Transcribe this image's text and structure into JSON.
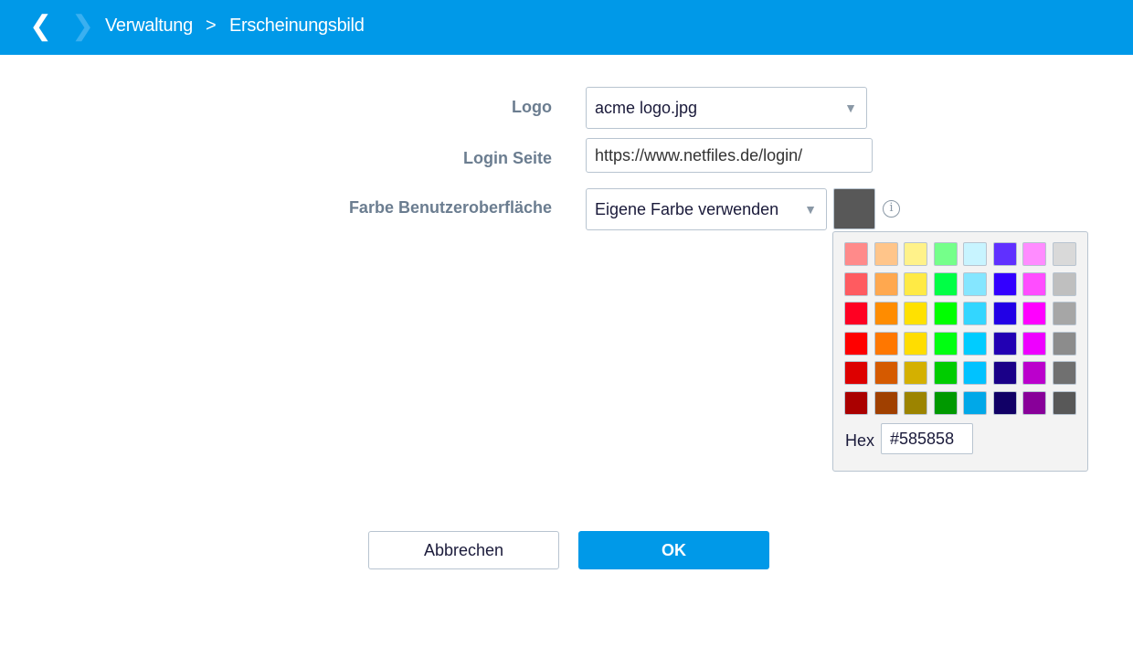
{
  "header": {
    "back_icon": "chevron-left",
    "forward_icon": "chevron-right",
    "breadcrumb": [
      "Verwaltung",
      "Erscheinungsbild"
    ],
    "separator": ">"
  },
  "form": {
    "logo": {
      "label": "Logo",
      "value": "acme logo.jpg"
    },
    "login": {
      "label": "Login Seite",
      "value": "https://www.netfiles.de/login/"
    },
    "color": {
      "label": "Farbe Benutzeroberfläche",
      "value": "Eigene Farbe verwenden",
      "swatch": "#585858",
      "info": "i"
    }
  },
  "picker": {
    "colors": [
      [
        "#ff8a8a",
        "#ffc58a",
        "#fff28a",
        "#75ff8a",
        "#c8f4ff",
        "#6030ff",
        "#ff8cff",
        "#d9d9d9"
      ],
      [
        "#ff5b60",
        "#ffa84f",
        "#ffea45",
        "#00ff45",
        "#85e6ff",
        "#3300ff",
        "#ff4dff",
        "#bfbfbf"
      ],
      [
        "#ff0022",
        "#ff8c00",
        "#ffe100",
        "#00ff00",
        "#33d6ff",
        "#2200e6",
        "#ff00ff",
        "#a6a6a6"
      ],
      [
        "#ff0000",
        "#ff7700",
        "#ffdd00",
        "#00ff11",
        "#00ccff",
        "#2200b3",
        "#ee00ff",
        "#8c8c8c"
      ],
      [
        "#dd0000",
        "#d55a00",
        "#d4b000",
        "#00cc00",
        "#00c2ff",
        "#1a0088",
        "#bb00cc",
        "#707070"
      ],
      [
        "#aa0000",
        "#a04000",
        "#9c8400",
        "#009900",
        "#00a8e8",
        "#110066",
        "#880099",
        "#585858"
      ]
    ],
    "hex_label": "Hex",
    "hex_value": "#585858"
  },
  "buttons": {
    "cancel": "Abbrechen",
    "ok": "OK"
  }
}
